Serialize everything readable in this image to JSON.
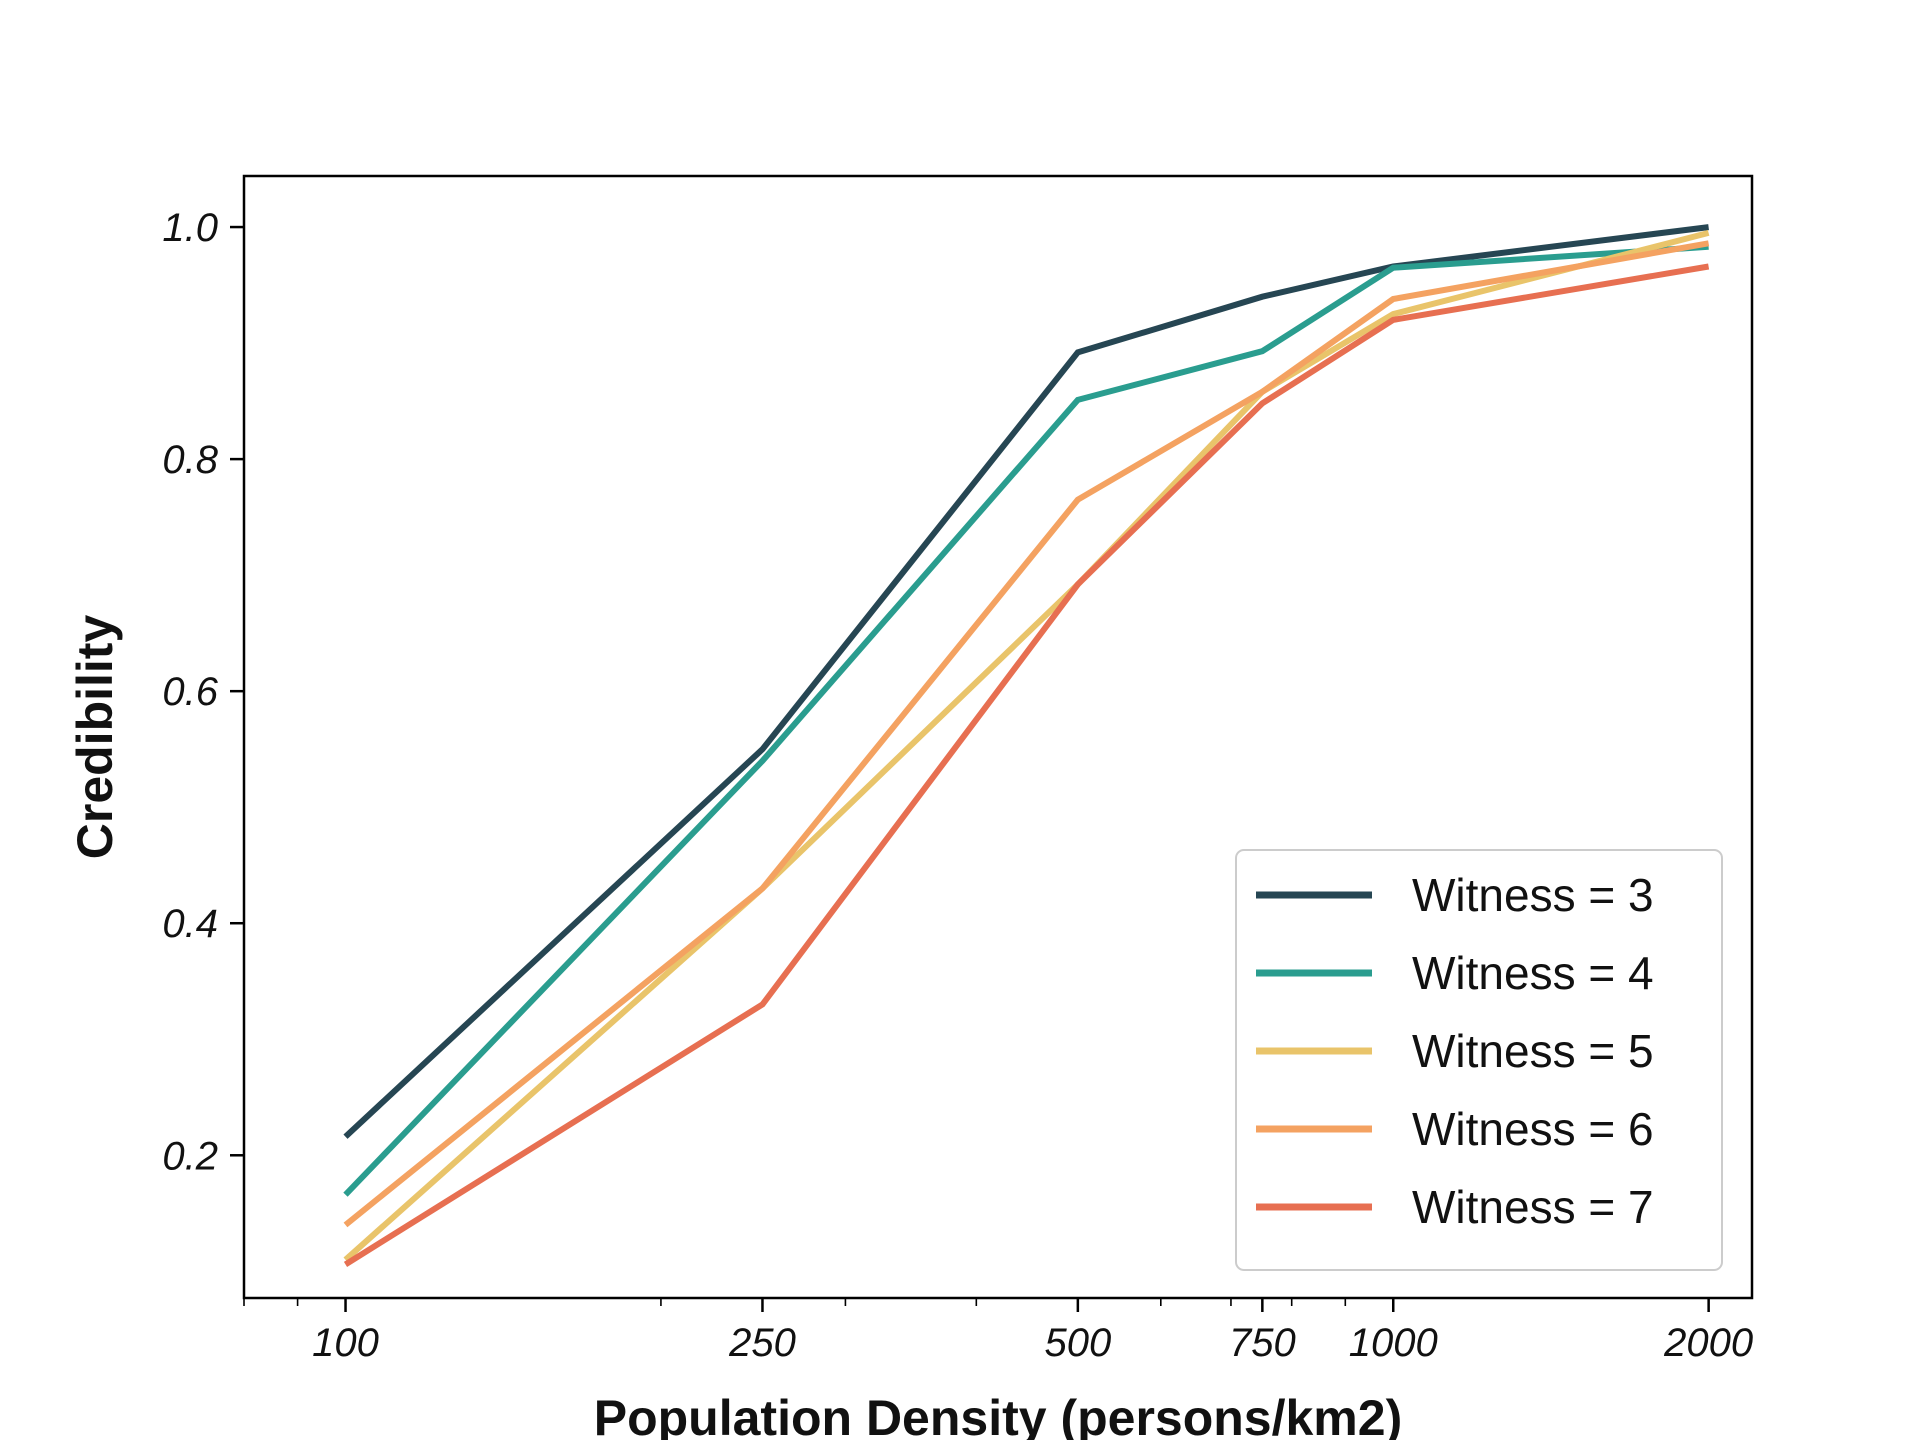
{
  "chart_data": {
    "type": "line",
    "title": "",
    "xlabel": "Population Density (persons/km2)",
    "ylabel": "Credibility",
    "x_scale": "log",
    "x": [
      100,
      250,
      500,
      750,
      1000,
      2000
    ],
    "xticks": [
      100,
      250,
      500,
      750,
      1000,
      2000
    ],
    "xtick_labels": [
      "100",
      "250",
      "500",
      "750",
      "1000",
      "2000"
    ],
    "xlim": [
      80,
      2200
    ],
    "yticks": [
      0.2,
      0.4,
      0.6,
      0.8,
      1.0
    ],
    "ytick_labels": [
      "0.2",
      "0.4",
      "0.6",
      "0.8",
      "1.0"
    ],
    "ylim": [
      0.077,
      1.044
    ],
    "grid": false,
    "legend_position": "lower-right",
    "series": [
      {
        "name": "Witness = 3",
        "color": "#264653",
        "values": [
          0.216,
          0.55,
          0.892,
          0.94,
          0.966,
          1.0
        ]
      },
      {
        "name": "Witness = 4",
        "color": "#2a9d8f",
        "values": [
          0.166,
          0.54,
          0.851,
          0.893,
          0.965,
          0.983
        ]
      },
      {
        "name": "Witness = 5",
        "color": "#e9c46a",
        "values": [
          0.11,
          0.43,
          0.692,
          0.858,
          0.925,
          0.995
        ]
      },
      {
        "name": "Witness = 6",
        "color": "#f4a261",
        "values": [
          0.14,
          0.43,
          0.765,
          0.858,
          0.938,
          0.986
        ]
      },
      {
        "name": "Witness = 7",
        "color": "#e76f51",
        "values": [
          0.106,
          0.33,
          0.692,
          0.848,
          0.92,
          0.966
        ]
      }
    ]
  }
}
